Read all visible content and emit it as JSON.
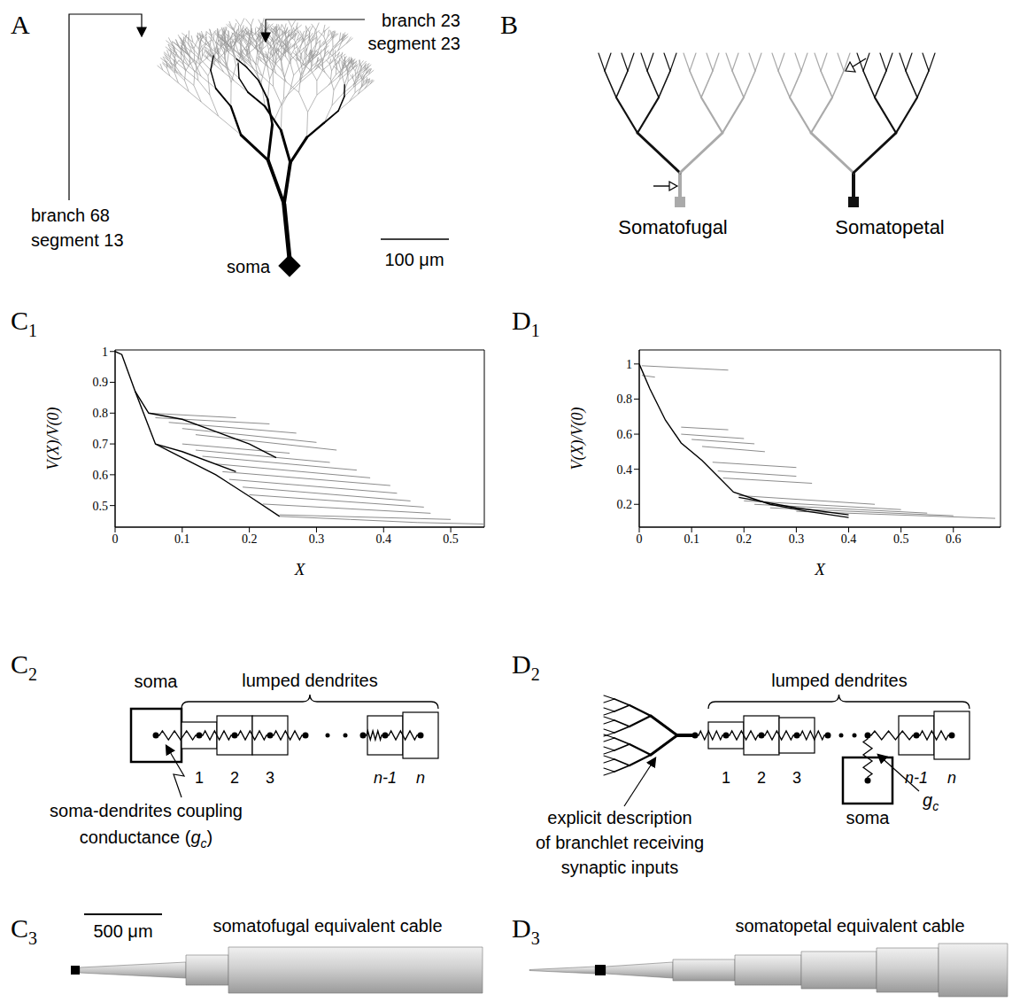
{
  "panel_labels": {
    "A": {
      "letter": "A"
    },
    "B": {
      "letter": "B"
    },
    "C1": {
      "letter": "C",
      "sub": "1"
    },
    "D1": {
      "letter": "D",
      "sub": "1"
    },
    "C2": {
      "letter": "C",
      "sub": "2"
    },
    "D2": {
      "letter": "D",
      "sub": "2"
    },
    "C3": {
      "letter": "C",
      "sub": "3"
    },
    "D3": {
      "letter": "D",
      "sub": "3"
    }
  },
  "panel_A": {
    "annotations": [
      [
        "branch 23",
        "segment 23"
      ],
      [
        "branch 68",
        "segment 13"
      ]
    ],
    "soma_label": "soma",
    "scale_bar": "100 μm"
  },
  "panel_B": {
    "labels": [
      "Somatofugal",
      "Somatopetal"
    ]
  },
  "panel_C2": {
    "soma_label": "soma",
    "group_label": "lumped dendrites",
    "compartments": [
      "1",
      "2",
      "3",
      "n-1",
      "n"
    ],
    "coupling_label": {
      "line1": "soma-dendrites coupling",
      "line2_before": "conductance (",
      "symbol": "g",
      "subscript": "c",
      "line2_after": ")"
    }
  },
  "panel_D2": {
    "description": [
      "explicit description",
      "of branchlet receiving",
      "synaptic inputs"
    ],
    "group_label": "lumped dendrites",
    "compartments": [
      "1",
      "2",
      "3",
      "n-1",
      "n"
    ],
    "soma_label": "soma",
    "coupling_symbol": {
      "symbol": "g",
      "subscript": "c"
    }
  },
  "panel_C3": {
    "scale_bar": "500 μm",
    "label": "somatofugal equivalent cable"
  },
  "panel_D3": {
    "label": "somatopetal equivalent cable"
  },
  "chart_data": [
    {
      "type": "line",
      "x_label": "X",
      "y_label": "V(X)/V(0)",
      "xlim": [
        0,
        0.55
      ],
      "ylim": [
        0.43,
        1.005
      ],
      "xticks": [
        0,
        0.1,
        0.2,
        0.3,
        0.4,
        0.5
      ],
      "yticks": [
        0.5,
        0.6,
        0.7,
        0.8,
        0.9,
        1
      ],
      "series": [
        {
          "color": "#8c8c8c",
          "x": [
            0.05,
            0.18
          ],
          "values": [
            0.8,
            0.785
          ]
        },
        {
          "color": "#8c8c8c",
          "x": [
            0.06,
            0.23
          ],
          "values": [
            0.785,
            0.765
          ]
        },
        {
          "color": "#8c8c8c",
          "x": [
            0.08,
            0.27
          ],
          "values": [
            0.77,
            0.735
          ]
        },
        {
          "color": "#8c8c8c",
          "x": [
            0.1,
            0.3
          ],
          "values": [
            0.75,
            0.705
          ]
        },
        {
          "color": "#8c8c8c",
          "x": [
            0.12,
            0.33
          ],
          "values": [
            0.73,
            0.68
          ]
        },
        {
          "color": "#8c8c8c",
          "x": [
            0.1,
            0.26
          ],
          "values": [
            0.7,
            0.67
          ]
        },
        {
          "color": "#8c8c8c",
          "x": [
            0.12,
            0.32
          ],
          "values": [
            0.68,
            0.64
          ]
        },
        {
          "color": "#8c8c8c",
          "x": [
            0.13,
            0.36
          ],
          "values": [
            0.66,
            0.615
          ]
        },
        {
          "color": "#8c8c8c",
          "x": [
            0.15,
            0.38
          ],
          "values": [
            0.635,
            0.59
          ]
        },
        {
          "color": "#8c8c8c",
          "x": [
            0.16,
            0.41
          ],
          "values": [
            0.61,
            0.565
          ]
        },
        {
          "color": "#8c8c8c",
          "x": [
            0.17,
            0.42
          ],
          "values": [
            0.585,
            0.54
          ]
        },
        {
          "color": "#8c8c8c",
          "x": [
            0.19,
            0.44
          ],
          "values": [
            0.56,
            0.515
          ]
        },
        {
          "color": "#8c8c8c",
          "x": [
            0.2,
            0.46
          ],
          "values": [
            0.535,
            0.495
          ]
        },
        {
          "color": "#8c8c8c",
          "x": [
            0.22,
            0.47
          ],
          "values": [
            0.505,
            0.475
          ]
        },
        {
          "color": "#8c8c8c",
          "x": [
            0.245,
            0.5
          ],
          "values": [
            0.47,
            0.455
          ]
        },
        {
          "color": "#8c8c8c",
          "x": [
            0.245,
            0.35,
            0.45,
            0.55
          ],
          "values": [
            0.465,
            0.455,
            0.445,
            0.44
          ]
        },
        {
          "color": "#000000",
          "x": [
            0,
            0.01,
            0.03,
            0.06,
            0.1,
            0.15,
            0.2,
            0.245
          ],
          "values": [
            1,
            0.99,
            0.87,
            0.7,
            0.655,
            0.6,
            0.53,
            0.465
          ]
        },
        {
          "color": "#000000",
          "x": [
            0.03,
            0.05,
            0.1,
            0.15,
            0.2,
            0.24
          ],
          "values": [
            0.87,
            0.8,
            0.78,
            0.74,
            0.7,
            0.655
          ]
        },
        {
          "color": "#000000",
          "x": [
            0.06,
            0.1,
            0.18
          ],
          "values": [
            0.7,
            0.675,
            0.61
          ]
        }
      ]
    },
    {
      "type": "line",
      "x_label": "X",
      "y_label": "V(X)/V(0)",
      "xlim": [
        0,
        0.69
      ],
      "ylim": [
        0.07,
        1.08
      ],
      "xticks": [
        0,
        0.1,
        0.2,
        0.3,
        0.4,
        0.5,
        0.6
      ],
      "yticks": [
        0.2,
        0.4,
        0.6,
        0.8,
        1
      ],
      "series": [
        {
          "color": "#8c8c8c",
          "x": [
            0.005,
            0.17
          ],
          "values": [
            0.99,
            0.965
          ]
        },
        {
          "color": "#8c8c8c",
          "x": [
            0.005,
            0.03
          ],
          "values": [
            0.935,
            0.925
          ]
        },
        {
          "color": "#8c8c8c",
          "x": [
            0.08,
            0.17
          ],
          "values": [
            0.64,
            0.625
          ]
        },
        {
          "color": "#8c8c8c",
          "x": [
            0.08,
            0.2
          ],
          "values": [
            0.6,
            0.575
          ]
        },
        {
          "color": "#8c8c8c",
          "x": [
            0.1,
            0.22
          ],
          "values": [
            0.57,
            0.545
          ]
        },
        {
          "color": "#8c8c8c",
          "x": [
            0.12,
            0.24
          ],
          "values": [
            0.53,
            0.5
          ]
        },
        {
          "color": "#8c8c8c",
          "x": [
            0.14,
            0.3
          ],
          "values": [
            0.44,
            0.41
          ]
        },
        {
          "color": "#8c8c8c",
          "x": [
            0.15,
            0.3
          ],
          "values": [
            0.39,
            0.36
          ]
        },
        {
          "color": "#8c8c8c",
          "x": [
            0.16,
            0.33
          ],
          "values": [
            0.35,
            0.32
          ]
        },
        {
          "color": "#8c8c8c",
          "x": [
            0.19,
            0.45
          ],
          "values": [
            0.25,
            0.2
          ]
        },
        {
          "color": "#8c8c8c",
          "x": [
            0.2,
            0.5
          ],
          "values": [
            0.22,
            0.17
          ]
        },
        {
          "color": "#8c8c8c",
          "x": [
            0.22,
            0.55
          ],
          "values": [
            0.2,
            0.15
          ]
        },
        {
          "color": "#8c8c8c",
          "x": [
            0.25,
            0.6
          ],
          "values": [
            0.18,
            0.135
          ]
        },
        {
          "color": "#8c8c8c",
          "x": [
            0.3,
            0.68
          ],
          "values": [
            0.16,
            0.12
          ]
        },
        {
          "color": "#000000",
          "x": [
            0,
            0.02,
            0.05,
            0.08,
            0.12,
            0.18,
            0.25,
            0.32,
            0.4
          ],
          "values": [
            1,
            0.86,
            0.68,
            0.55,
            0.45,
            0.27,
            0.2,
            0.16,
            0.125
          ]
        },
        {
          "color": "#000000",
          "x": [
            0.19,
            0.3,
            0.4
          ],
          "values": [
            0.24,
            0.18,
            0.14
          ]
        }
      ]
    }
  ]
}
